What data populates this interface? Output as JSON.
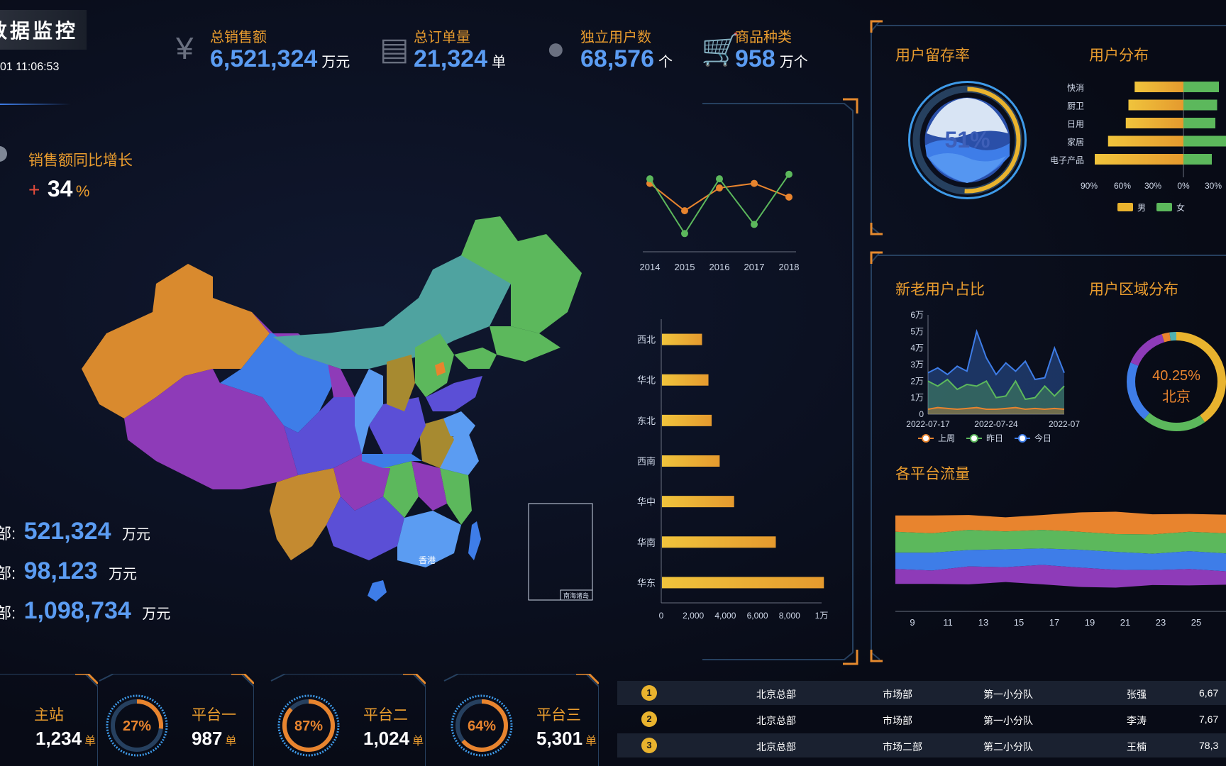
{
  "header": {
    "title": "数据监控",
    "datetime": "01 11:06:53"
  },
  "kpis": [
    {
      "icon": "yen-icon",
      "label": "总销售额",
      "value": "6,521,324",
      "unit": "万元"
    },
    {
      "icon": "document-icon",
      "label": "总订单量",
      "value": "21,324",
      "unit": "单"
    },
    {
      "icon": "user-icon",
      "label": "独立用户数",
      "value": "68,576",
      "unit": "个"
    },
    {
      "icon": "cart-icon",
      "label": "商品种类",
      "value": "958",
      "unit": "万个"
    }
  ],
  "growth": {
    "label": "销售额同比增长",
    "sign": "+",
    "value": "34",
    "unit": "%"
  },
  "regions_sales": [
    {
      "label": "部:",
      "value": "521,324",
      "unit": "万元"
    },
    {
      "label": "部:",
      "value": "98,123",
      "unit": "万元"
    },
    {
      "label": "部:",
      "value": "1,098,734",
      "unit": "万元"
    }
  ],
  "map": {
    "hongkong_label": "香港",
    "inset_label": "南海诸岛"
  },
  "platforms": [
    {
      "label": "主站",
      "value": "1,234",
      "unit": "单",
      "percent": null
    },
    {
      "label": "平台一",
      "value": "987",
      "unit": "单",
      "percent": "27%"
    },
    {
      "label": "平台二",
      "value": "1,024",
      "unit": "单",
      "percent": "87%"
    },
    {
      "label": "平台三",
      "value": "5,301",
      "unit": "单",
      "percent": "64%"
    }
  ],
  "table": {
    "rows": [
      {
        "rank": "1",
        "hq": "北京总部",
        "dept": "市场部",
        "team": "第一小分队",
        "name": "张强",
        "amount": "6,67"
      },
      {
        "rank": "2",
        "hq": "北京总部",
        "dept": "市场部",
        "team": "第一小分队",
        "name": "李涛",
        "amount": "7,67"
      },
      {
        "rank": "3",
        "hq": "北京总部",
        "dept": "市场二部",
        "team": "第二小分队",
        "name": "王楠",
        "amount": "78,3"
      }
    ]
  },
  "panels": {
    "retention_title": "用户留存率",
    "retention_value": "51%",
    "distribution_title": "用户分布",
    "newold_title": "新老用户占比",
    "region_title": "用户区域分布",
    "region_center_value": "40.25%",
    "region_center_label": "北京",
    "traffic_title": "各平台流量"
  },
  "chart_data": [
    {
      "type": "line",
      "x": [
        "2014",
        "2015",
        "2016",
        "2017",
        "2018"
      ],
      "series": [
        {
          "values": [
            5.0,
            4.4,
            4.9,
            5.0,
            4.7
          ],
          "color": "#e8842e"
        },
        {
          "values": [
            5.1,
            3.9,
            5.1,
            4.1,
            5.2
          ],
          "color": "#5cb85c"
        }
      ],
      "ylim": [
        3.5,
        5.6
      ]
    },
    {
      "type": "bar",
      "orientation": "horizontal",
      "categories": [
        "西北",
        "华北",
        "东北",
        "西南",
        "华中",
        "华南",
        "华东"
      ],
      "values": [
        2500,
        2900,
        3100,
        3600,
        4500,
        7100,
        10100
      ],
      "xticks": [
        "0",
        "2,000",
        "4,000",
        "6,000",
        "8,000",
        "1万"
      ],
      "xlim": [
        0,
        10000
      ]
    },
    {
      "type": "bar",
      "orientation": "horizontal-diverging",
      "categories": [
        "快消",
        "厨卫",
        "日用",
        "家居",
        "电子产品"
      ],
      "series": [
        {
          "name": "男",
          "values": [
            -55,
            -62,
            -65,
            -85,
            -100
          ],
          "color": "#e9b32e"
        },
        {
          "name": "女",
          "values": [
            40,
            38,
            36,
            48,
            32
          ],
          "color": "#5cb85c"
        }
      ],
      "xticks": [
        "90%",
        "60%",
        "30%",
        "0%",
        "30%"
      ]
    },
    {
      "type": "area",
      "x": [
        "2022-07-17",
        "",
        "",
        "",
        "",
        "",
        "",
        "2022-07-24",
        "",
        "",
        "",
        "",
        "",
        "",
        "2022-07"
      ],
      "yticks": [
        "0",
        "1万",
        "2万",
        "3万",
        "4万",
        "5万",
        "6万"
      ],
      "ylim": [
        0,
        60000
      ],
      "series": [
        {
          "name": "上周",
          "color": "#e8842e",
          "values": [
            3000,
            4000,
            3500,
            3000,
            3500,
            4000,
            3000,
            3000,
            3500,
            4000,
            3000,
            3500,
            3000,
            3500,
            3000
          ]
        },
        {
          "name": "昨日",
          "color": "#5cb85c",
          "values": [
            20000,
            17000,
            21000,
            15000,
            18000,
            17000,
            20000,
            10000,
            11000,
            20000,
            9000,
            10000,
            17000,
            11000,
            17000
          ]
        },
        {
          "name": "今日",
          "color": "#3e7de8",
          "values": [
            25000,
            28000,
            24000,
            29000,
            26000,
            50000,
            34000,
            24000,
            31000,
            26000,
            32000,
            21000,
            22000,
            40000,
            25000
          ]
        }
      ]
    },
    {
      "type": "pie",
      "center_value": "40.25%",
      "center_label": "北京",
      "slices": [
        {
          "value": 40.25,
          "color": "#e9b32e"
        },
        {
          "value": 21,
          "color": "#5cb85c"
        },
        {
          "value": 20,
          "color": "#3e7de8"
        },
        {
          "value": 14,
          "color": "#8e3bb8"
        },
        {
          "value": 2.5,
          "color": "#e8842e"
        },
        {
          "value": 2.25,
          "color": "#4fb0b0"
        }
      ]
    },
    {
      "type": "area",
      "stacked": "streamgraph",
      "xticks": [
        "9",
        "11",
        "13",
        "15",
        "17",
        "19",
        "21",
        "23",
        "25"
      ],
      "series": [
        {
          "color": "#e8842e",
          "values": [
            22,
            24,
            20,
            19,
            20,
            26,
            30,
            27,
            24,
            25
          ]
        },
        {
          "color": "#5cb85c",
          "values": [
            28,
            26,
            27,
            24,
            25,
            24,
            24,
            26,
            26,
            27
          ]
        },
        {
          "color": "#3e7de8",
          "values": [
            22,
            24,
            22,
            24,
            22,
            24,
            24,
            22,
            24,
            24
          ]
        },
        {
          "color": "#8e3bb8",
          "values": [
            20,
            18,
            24,
            20,
            26,
            26,
            24,
            20,
            22,
            18
          ]
        }
      ]
    }
  ]
}
